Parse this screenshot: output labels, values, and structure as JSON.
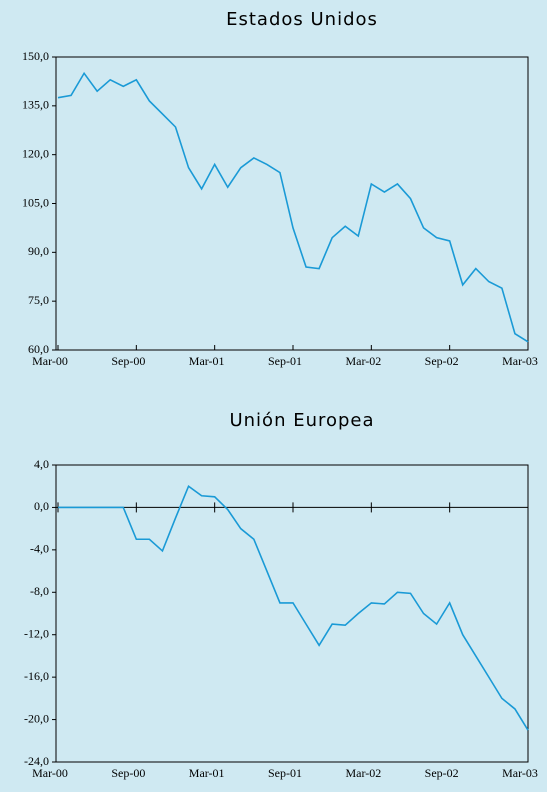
{
  "chart_data": [
    {
      "type": "line",
      "title": "Estados Unidos",
      "color": "#1a9ad6",
      "categories": [
        "Mar-00",
        null,
        null,
        null,
        null,
        null,
        "Sep-00",
        null,
        null,
        null,
        null,
        null,
        "Mar-01",
        null,
        null,
        null,
        null,
        null,
        "Sep-01",
        null,
        null,
        null,
        null,
        null,
        "Mar-02",
        null,
        null,
        null,
        null,
        null,
        "Sep-02",
        null,
        null,
        null,
        null,
        null,
        "Mar-03"
      ],
      "values": [
        137.5,
        138.2,
        145,
        139.5,
        143,
        141,
        143,
        136.5,
        132.5,
        128.5,
        116,
        109.5,
        117,
        110,
        116,
        119,
        117,
        114.5,
        97.5,
        85.5,
        85,
        94.5,
        98,
        95,
        111,
        108.5,
        111,
        106.5,
        97.5,
        94.5,
        93.5,
        80,
        85,
        81,
        79,
        65,
        62.5
      ],
      "ylim": [
        60,
        150
      ],
      "yticks": [
        {
          "value": 60,
          "label": "60,0"
        },
        {
          "value": 75,
          "label": "75,0"
        },
        {
          "value": 90,
          "label": "90,0"
        },
        {
          "value": 105,
          "label": "105,0"
        },
        {
          "value": 120,
          "label": "120,0"
        },
        {
          "value": 135,
          "label": "135,0"
        },
        {
          "value": 150,
          "label": "150,0"
        }
      ]
    },
    {
      "type": "line",
      "title": "Unión Europea",
      "color": "#1a9ad6",
      "categories": [
        "Mar-00",
        null,
        null,
        null,
        null,
        null,
        "Sep-00",
        null,
        null,
        null,
        null,
        null,
        "Mar-01",
        null,
        null,
        null,
        null,
        null,
        "Sep-01",
        null,
        null,
        null,
        null,
        null,
        "Mar-02",
        null,
        null,
        null,
        null,
        null,
        "Sep-02",
        null,
        null,
        null,
        null,
        null,
        "Mar-03"
      ],
      "values": [
        0,
        0,
        0,
        0,
        0,
        0,
        -3,
        -3,
        -4.1,
        -1,
        2,
        1.1,
        1,
        -0.2,
        -2,
        -3,
        -6,
        -9,
        -9,
        -11,
        -13,
        -11,
        -11.1,
        -10,
        -9,
        -9.1,
        -8,
        -8.1,
        -10,
        -11,
        -9,
        -12,
        -14,
        -16,
        -18,
        -19,
        -21
      ],
      "ylim": [
        -24,
        4
      ],
      "yticks": [
        {
          "value": -24,
          "label": "-24,0"
        },
        {
          "value": -20,
          "label": "-20,0"
        },
        {
          "value": -16,
          "label": "-16,0"
        },
        {
          "value": -12,
          "label": "-12,0"
        },
        {
          "value": -8,
          "label": "-8,0"
        },
        {
          "value": -4,
          "label": "-4,0"
        },
        {
          "value": 0,
          "label": "0,0"
        },
        {
          "value": 4,
          "label": "4,0"
        }
      ]
    }
  ]
}
